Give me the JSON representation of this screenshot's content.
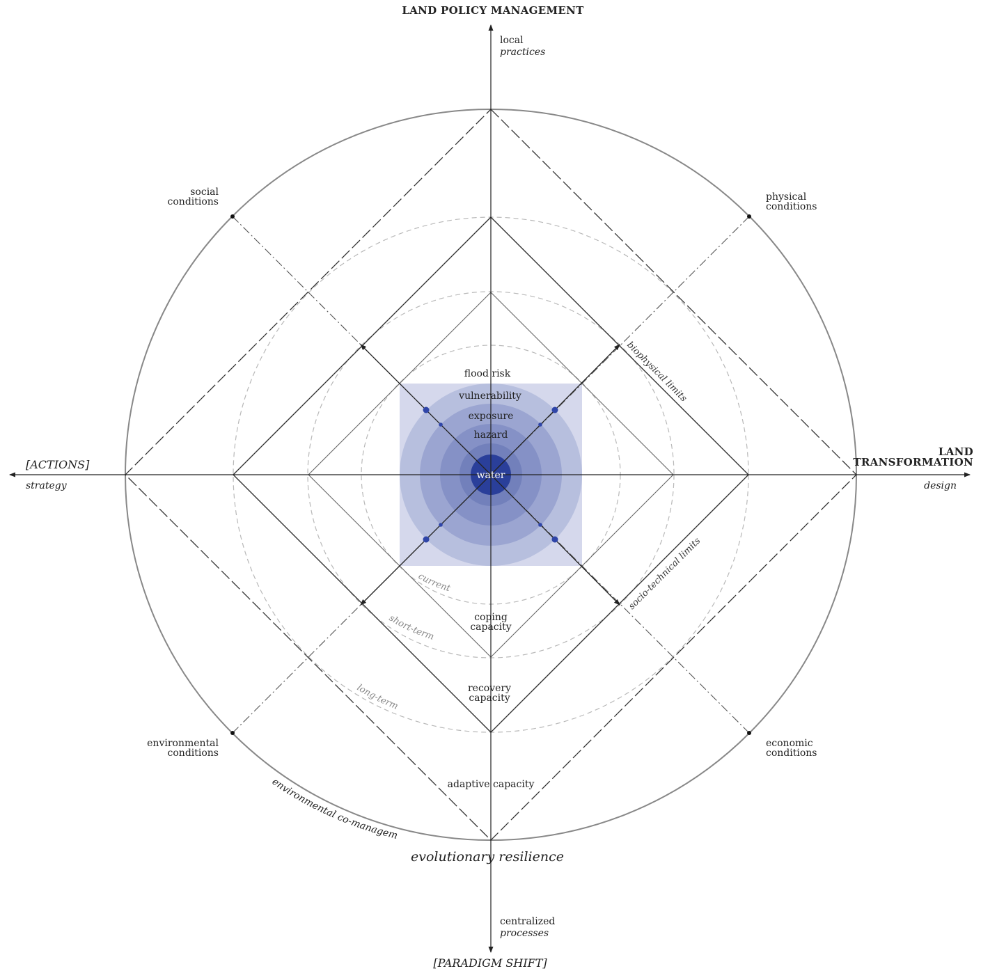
{
  "top": {
    "title": "LAND POLICY MANAGEMENT",
    "sub1": "local",
    "sub2": "practices"
  },
  "bottom": {
    "title": "[PARADIGM SHIFT]",
    "sub1": "centralized",
    "sub2": "processes"
  },
  "left": {
    "title": "[ACTIONS]",
    "sub": "strategy"
  },
  "right": {
    "title_line1": "LAND",
    "title_line2": "TRANSFORMATION",
    "sub": "design"
  },
  "corners": {
    "social": [
      "social",
      "conditions"
    ],
    "physical": [
      "physical",
      "conditions"
    ],
    "environmental": [
      "environmental",
      "conditions"
    ],
    "economic": [
      "economic",
      "conditions"
    ]
  },
  "core": {
    "center": "water",
    "rings": [
      "flood risk",
      "vulnerability",
      "exposure",
      "hazard"
    ]
  },
  "capacities": {
    "coping": [
      "coping",
      "capacity"
    ],
    "recovery": [
      "recovery",
      "capacity"
    ],
    "adaptive": "adaptive capacity"
  },
  "time_horizons": [
    "current",
    "short-term",
    "long-term"
  ],
  "limits": {
    "biophysical": "biophysical limits",
    "sociotechnical": "socio-technical limits"
  },
  "arc_label": "environmental co-management",
  "outcome": "evolutionary resilience",
  "colors": {
    "core_square": "#d5d8ec",
    "ring1": "#b7bfde",
    "ring2": "#9ba5d1",
    "ring3": "#8591c6",
    "ring4": "#7280bb",
    "center": "#2a3f9a",
    "dots": "#2f45a8"
  }
}
